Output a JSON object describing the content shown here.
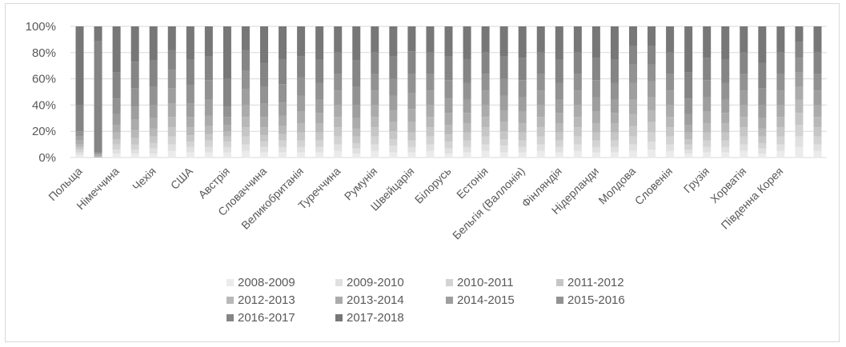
{
  "chart_data": {
    "type": "bar",
    "stacked": true,
    "normalized": true,
    "categories": [
      "Польща",
      "Німеччина",
      "Чехія",
      "США",
      "Австрія",
      "Словаччина",
      "Великобританія",
      "Туреччина",
      "Румунія",
      "Швейцарія",
      "Білорусь",
      "Естонія",
      "Бельгія (Валлонія)",
      "Фінляндія",
      "Нідерланди",
      "Молдова",
      "Словенія",
      "Грузія",
      "Хорватія",
      "Південна Корея"
    ],
    "all_categories": [
      "Польща",
      "",
      "Німеччина",
      "",
      "Чехія",
      "",
      "США",
      "",
      "Австрія",
      "",
      "Словаччина",
      "",
      "Великобританія",
      "",
      "Туреччина",
      "",
      "Румунія",
      "",
      "Швейцарія",
      "",
      "Білорусь",
      "",
      "Естонія",
      "",
      "Бельгія (Валлонія)",
      "",
      "Фінляндія",
      "",
      "Нідерланди",
      "",
      "Молдова",
      "",
      "Словенія",
      "",
      "Грузія",
      "",
      "Хорватія",
      "",
      "Південна Корея"
    ],
    "yticks": [
      "0%",
      "20%",
      "40%",
      "60%",
      "80%",
      "100%"
    ],
    "ylim": [
      0,
      100
    ],
    "legend_position": "bottom",
    "series": [
      {
        "name": "2008-2009",
        "color": "#ebebeb"
      },
      {
        "name": "2009-2010",
        "color": "#e0e0e0"
      },
      {
        "name": "2010-2011",
        "color": "#d3d3d3"
      },
      {
        "name": "2011-2012",
        "color": "#c6c6c6"
      },
      {
        "name": "2012-2013",
        "color": "#b8b8b8"
      },
      {
        "name": "2013-2014",
        "color": "#ababab"
      },
      {
        "name": "2014-2015",
        "color": "#9e9e9e"
      },
      {
        "name": "2015-2016",
        "color": "#929292"
      },
      {
        "name": "2016-2017",
        "color": "#858585"
      },
      {
        "name": "2017-2018",
        "color": "#777777"
      }
    ],
    "values_percent": [
      [
        2,
        2,
        2,
        2,
        2,
        3,
        3,
        4,
        20,
        60
      ],
      [
        0,
        0,
        0,
        0,
        1,
        1,
        1,
        1,
        85,
        11
      ],
      [
        3,
        3,
        4,
        4,
        5,
        6,
        8,
        12,
        20,
        35
      ],
      [
        3,
        3,
        4,
        5,
        6,
        8,
        10,
        14,
        20,
        27
      ],
      [
        3,
        4,
        4,
        5,
        6,
        8,
        10,
        14,
        20,
        26
      ],
      [
        5,
        5,
        6,
        7,
        8,
        10,
        12,
        14,
        15,
        18
      ],
      [
        4,
        4,
        4,
        5,
        6,
        8,
        10,
        14,
        20,
        25
      ],
      [
        4,
        4,
        5,
        5,
        6,
        8,
        12,
        15,
        18,
        23
      ],
      [
        4,
        4,
        4,
        4,
        4,
        5,
        6,
        8,
        21,
        40
      ],
      [
        5,
        5,
        6,
        7,
        8,
        9,
        12,
        14,
        16,
        18
      ],
      [
        4,
        4,
        4,
        5,
        6,
        8,
        10,
        13,
        18,
        28
      ],
      [
        4,
        4,
        5,
        5,
        6,
        8,
        10,
        14,
        19,
        25
      ],
      [
        4,
        4,
        5,
        6,
        7,
        9,
        12,
        14,
        16,
        23
      ],
      [
        4,
        4,
        5,
        6,
        7,
        8,
        10,
        13,
        18,
        25
      ],
      [
        5,
        5,
        6,
        7,
        8,
        9,
        11,
        13,
        16,
        20
      ],
      [
        3,
        4,
        4,
        5,
        6,
        8,
        10,
        14,
        20,
        26
      ],
      [
        5,
        5,
        6,
        7,
        8,
        9,
        11,
        13,
        16,
        20
      ],
      [
        4,
        5,
        5,
        6,
        7,
        9,
        11,
        13,
        17,
        23
      ],
      [
        4,
        4,
        5,
        6,
        8,
        10,
        12,
        15,
        17,
        19
      ],
      [
        5,
        5,
        6,
        7,
        8,
        9,
        11,
        13,
        16,
        20
      ],
      [
        3,
        4,
        5,
        6,
        7,
        9,
        11,
        14,
        18,
        23
      ],
      [
        4,
        4,
        5,
        6,
        7,
        8,
        10,
        13,
        18,
        25
      ],
      [
        5,
        5,
        6,
        7,
        8,
        9,
        11,
        13,
        16,
        20
      ],
      [
        4,
        5,
        5,
        6,
        7,
        9,
        11,
        13,
        17,
        23
      ],
      [
        4,
        4,
        5,
        6,
        7,
        9,
        11,
        13,
        17,
        24
      ],
      [
        5,
        5,
        6,
        7,
        8,
        9,
        11,
        13,
        16,
        20
      ],
      [
        4,
        4,
        5,
        6,
        7,
        8,
        10,
        13,
        18,
        25
      ],
      [
        5,
        5,
        6,
        7,
        8,
        9,
        11,
        13,
        16,
        20
      ],
      [
        4,
        4,
        5,
        6,
        7,
        9,
        11,
        13,
        17,
        24
      ],
      [
        4,
        4,
        5,
        6,
        7,
        8,
        10,
        13,
        18,
        25
      ],
      [
        5,
        5,
        6,
        8,
        9,
        11,
        13,
        14,
        14,
        15
      ],
      [
        6,
        6,
        7,
        8,
        9,
        10,
        12,
        13,
        14,
        15
      ],
      [
        5,
        5,
        6,
        7,
        8,
        9,
        11,
        13,
        16,
        20
      ],
      [
        3,
        3,
        4,
        4,
        5,
        6,
        8,
        12,
        20,
        35
      ],
      [
        4,
        4,
        5,
        6,
        7,
        9,
        11,
        13,
        17,
        24
      ],
      [
        4,
        4,
        5,
        6,
        7,
        8,
        10,
        13,
        18,
        25
      ],
      [
        5,
        5,
        6,
        7,
        8,
        9,
        11,
        13,
        16,
        20
      ],
      [
        3,
        4,
        4,
        5,
        6,
        8,
        10,
        13,
        19,
        28
      ],
      [
        5,
        5,
        6,
        7,
        8,
        9,
        11,
        13,
        16,
        20
      ],
      [
        8,
        8,
        9,
        9,
        10,
        10,
        11,
        11,
        12,
        12
      ],
      [
        5,
        5,
        6,
        7,
        8,
        9,
        11,
        13,
        16,
        20
      ]
    ]
  }
}
